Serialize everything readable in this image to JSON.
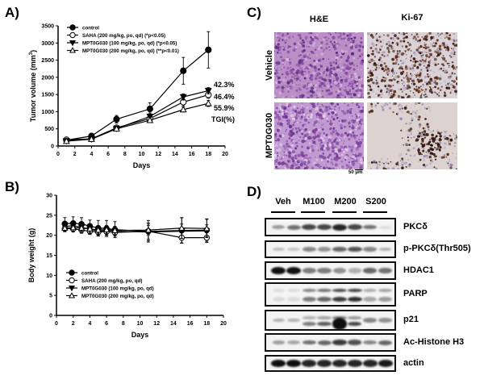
{
  "panels": {
    "a": "A)",
    "b": "B)",
    "c": "C)",
    "d": "D)"
  },
  "chart_data": [
    {
      "id": "A",
      "type": "line",
      "title": "",
      "xlabel": "Days",
      "ylabel": "Tumor volume (mm3)",
      "xlim": [
        0,
        20
      ],
      "ylim": [
        0,
        3500
      ],
      "xticks": [
        0,
        2,
        4,
        6,
        8,
        10,
        12,
        14,
        16,
        18,
        20
      ],
      "yticks": [
        0,
        500,
        1000,
        1500,
        2000,
        2500,
        3000,
        3500
      ],
      "grid": false,
      "legend_position": "upper left",
      "x": [
        1,
        4,
        7,
        11,
        15,
        18
      ],
      "series": [
        {
          "name": "control",
          "marker": "filled-circle",
          "values": [
            170,
            290,
            780,
            1080,
            2190,
            2800
          ],
          "errors": [
            40,
            50,
            110,
            180,
            390,
            530
          ]
        },
        {
          "name": "SAHA (200 mg/kg, po, qd) (*p<0.05)",
          "marker": "open-circle",
          "values": [
            180,
            210,
            530,
            800,
            1280,
            1490
          ],
          "errors": [
            30,
            40,
            60,
            90,
            110,
            100
          ]
        },
        {
          "name": "MPT0G030 (100 mg/kg, po, qd) (*p<0.05)",
          "marker": "filled-triangle-down",
          "values": [
            150,
            200,
            510,
            860,
            1430,
            1610
          ],
          "errors": [
            30,
            40,
            50,
            100,
            90,
            90
          ]
        },
        {
          "name": "MPT0G030 (200 mg/kg, po, qd) (**p<0.01)",
          "marker": "open-triangle-up",
          "values": [
            140,
            200,
            500,
            750,
            1060,
            1240
          ],
          "errors": [
            30,
            30,
            40,
            70,
            70,
            90
          ]
        }
      ],
      "annotations": [
        "42.3%",
        "46.4%",
        "55.9%",
        "TGI(%)"
      ]
    },
    {
      "id": "B",
      "type": "line",
      "title": "",
      "xlabel": "Days",
      "ylabel": "Body weight (g)",
      "xlim": [
        0,
        20
      ],
      "ylim": [
        0,
        30
      ],
      "xticks": [
        0,
        2,
        4,
        6,
        8,
        10,
        12,
        14,
        16,
        18,
        20
      ],
      "yticks": [
        0,
        5,
        10,
        15,
        20,
        25,
        30
      ],
      "grid": false,
      "legend_position": "lower left",
      "x": [
        1,
        2,
        3,
        4,
        5,
        6,
        7,
        11,
        15,
        18
      ],
      "series": [
        {
          "name": "control",
          "marker": "filled-circle",
          "values": [
            22.9,
            23.0,
            22.8,
            22.3,
            21.8,
            21.7,
            21.4,
            21.0,
            21.2,
            21.3
          ],
          "errors": [
            1.5,
            1.6,
            1.6,
            1.5,
            1.9,
            2.0,
            2.0,
            2.7,
            3.2,
            2.8
          ]
        },
        {
          "name": "SAHA (200 mg/kg, po, qd)",
          "marker": "open-circle",
          "values": [
            21.7,
            21.6,
            21.3,
            21.0,
            20.8,
            20.9,
            20.7,
            21.0,
            19.4,
            19.4
          ],
          "errors": [
            0.8,
            0.8,
            0.8,
            0.8,
            0.9,
            0.9,
            0.9,
            2.0,
            1.3,
            1.2
          ]
        },
        {
          "name": "MPT0G030 (100 mg/kg, po, qd)",
          "marker": "filled-triangle-down",
          "values": [
            22.2,
            22.4,
            22.0,
            21.5,
            21.0,
            21.2,
            21.0,
            20.8,
            21.0,
            21.1
          ],
          "errors": [
            1.0,
            1.0,
            1.0,
            1.1,
            1.2,
            1.2,
            1.2,
            2.2,
            1.8,
            1.5
          ]
        },
        {
          "name": "MPT0G030 (200 mg/kg, po, qd)",
          "marker": "open-triangle-up",
          "values": [
            21.8,
            21.9,
            21.8,
            21.6,
            21.3,
            21.4,
            21.2,
            21.3,
            21.8,
            21.7
          ],
          "errors": [
            0.9,
            0.9,
            0.9,
            0.9,
            1.0,
            1.0,
            1.0,
            1.2,
            2.6,
            2.3
          ]
        }
      ]
    }
  ],
  "histology": {
    "columns": [
      "H&E",
      "Ki-67"
    ],
    "rows": [
      "Vehicle",
      "MPT0G030"
    ],
    "scale_bar": "50 μm"
  },
  "western_blot": {
    "groups": [
      "Veh",
      "M100",
      "M200",
      "S200"
    ],
    "proteins": [
      "PKCδ",
      "p-PKCδ(Thr505)",
      "HDAC1",
      "PARP",
      "p21",
      "Ac-Histone H3",
      "actin"
    ]
  }
}
